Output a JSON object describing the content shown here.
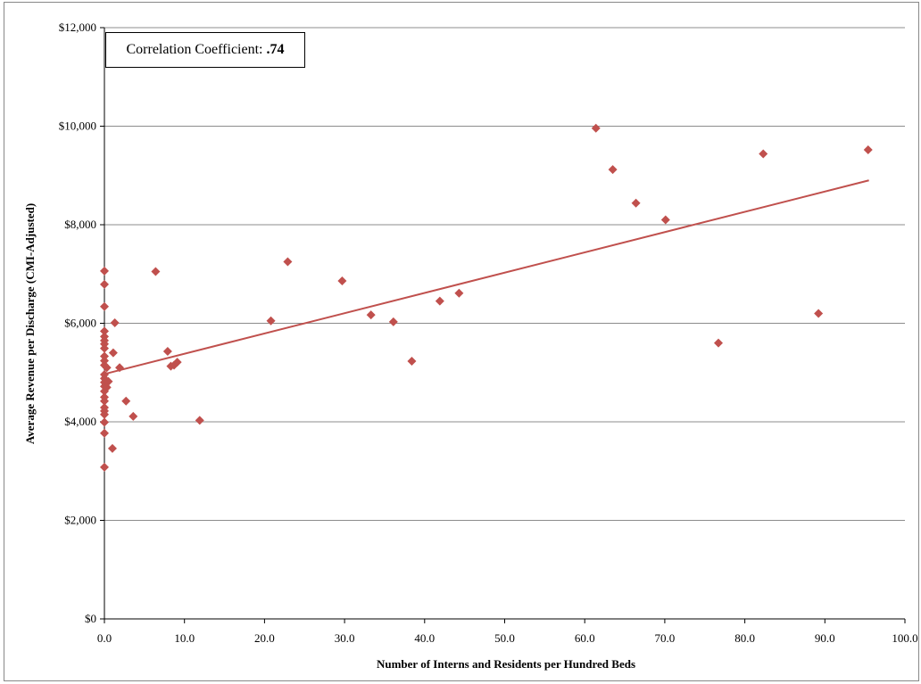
{
  "chart_data": {
    "type": "scatter",
    "title": "",
    "xlabel": "Number of Interns and Residents per Hundred Beds",
    "ylabel": "Average Revenue per Discharge (CMI-Adjusted)",
    "xlim": [
      0,
      100
    ],
    "ylim": [
      0,
      12000
    ],
    "x_ticks": [
      "0.0",
      "10.0",
      "20.0",
      "30.0",
      "40.0",
      "50.0",
      "60.0",
      "70.0",
      "80.0",
      "90.0",
      "100.0"
    ],
    "y_ticks": [
      "$0",
      "$2,000",
      "$4,000",
      "$6,000",
      "$8,000",
      "$10,000",
      "$12,000"
    ],
    "grid": "horizontal",
    "marker_color": "#C0504D",
    "trendline_color": "#C0504D",
    "trendline": {
      "x": [
        0.0,
        95.5
      ],
      "y": [
        4970,
        8900
      ]
    },
    "annotation": {
      "label": "Correlation Coefficient:",
      "value": ".74"
    },
    "points": [
      {
        "x": 0.0,
        "y": 7060
      },
      {
        "x": 0.0,
        "y": 6790
      },
      {
        "x": 0.0,
        "y": 6340
      },
      {
        "x": 0.0,
        "y": 5840
      },
      {
        "x": 0.0,
        "y": 5730
      },
      {
        "x": 0.0,
        "y": 5650
      },
      {
        "x": 0.0,
        "y": 5580
      },
      {
        "x": 0.0,
        "y": 5490
      },
      {
        "x": 0.0,
        "y": 5330
      },
      {
        "x": 0.0,
        "y": 5240
      },
      {
        "x": 0.0,
        "y": 5150
      },
      {
        "x": 0.0,
        "y": 4960
      },
      {
        "x": 0.0,
        "y": 4880
      },
      {
        "x": 0.0,
        "y": 4800
      },
      {
        "x": 0.0,
        "y": 4720
      },
      {
        "x": 0.0,
        "y": 4620
      },
      {
        "x": 0.0,
        "y": 4500
      },
      {
        "x": 0.0,
        "y": 4420
      },
      {
        "x": 0.0,
        "y": 4290
      },
      {
        "x": 0.0,
        "y": 4220
      },
      {
        "x": 0.0,
        "y": 4150
      },
      {
        "x": 0.0,
        "y": 3990
      },
      {
        "x": 0.0,
        "y": 3770
      },
      {
        "x": 0.0,
        "y": 3080
      },
      {
        "x": 0.3,
        "y": 5100
      },
      {
        "x": 0.5,
        "y": 4820
      },
      {
        "x": 0.3,
        "y": 4700
      },
      {
        "x": 1.0,
        "y": 3460
      },
      {
        "x": 1.1,
        "y": 5400
      },
      {
        "x": 1.3,
        "y": 6010
      },
      {
        "x": 1.9,
        "y": 5100
      },
      {
        "x": 2.7,
        "y": 4420
      },
      {
        "x": 3.6,
        "y": 4110
      },
      {
        "x": 6.4,
        "y": 7050
      },
      {
        "x": 7.9,
        "y": 5430
      },
      {
        "x": 8.3,
        "y": 5130
      },
      {
        "x": 8.7,
        "y": 5150
      },
      {
        "x": 9.1,
        "y": 5210
      },
      {
        "x": 11.9,
        "y": 4030
      },
      {
        "x": 20.8,
        "y": 6050
      },
      {
        "x": 22.9,
        "y": 7250
      },
      {
        "x": 29.7,
        "y": 6860
      },
      {
        "x": 33.3,
        "y": 6170
      },
      {
        "x": 36.1,
        "y": 6030
      },
      {
        "x": 38.4,
        "y": 5230
      },
      {
        "x": 41.9,
        "y": 6450
      },
      {
        "x": 44.3,
        "y": 6610
      },
      {
        "x": 61.4,
        "y": 9960
      },
      {
        "x": 63.5,
        "y": 9120
      },
      {
        "x": 66.4,
        "y": 8440
      },
      {
        "x": 70.1,
        "y": 8100
      },
      {
        "x": 76.7,
        "y": 5600
      },
      {
        "x": 82.3,
        "y": 9440
      },
      {
        "x": 89.2,
        "y": 6200
      },
      {
        "x": 95.4,
        "y": 9520
      }
    ]
  }
}
